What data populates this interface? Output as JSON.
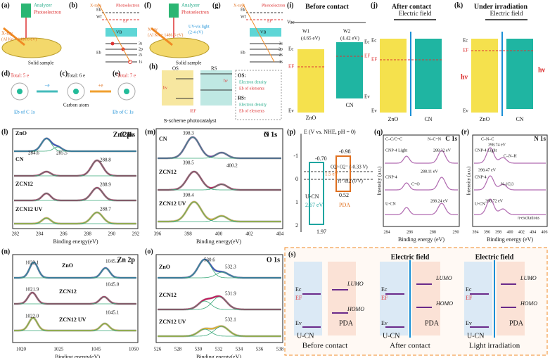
{
  "a": {
    "label": "(a)",
    "texts": [
      "Analyzer",
      "Photoelectron",
      "X-ray",
      "(Al Kα = 1486.6 eV)",
      "Solid sample"
    ]
  },
  "b": {
    "label": "(b)",
    "texts": [
      "X-rays",
      "Photoelectron",
      "Ek",
      "Wf",
      "EF",
      "VB",
      "Eb",
      "3s",
      "2p",
      "2s",
      "1s"
    ]
  },
  "c": {
    "label": "(c)",
    "texts": [
      "Total: 6 e",
      "Carbon atom",
      "−e",
      "+e"
    ]
  },
  "d": {
    "label": "(d)",
    "texts": [
      "Total: 5 e",
      "Eb of C 1s"
    ]
  },
  "e": {
    "label": "(e)",
    "texts": [
      "Total: 7 e",
      "Eb of C 1s"
    ]
  },
  "f": {
    "label": "(f)",
    "texts": [
      "Analyzer",
      "Photoelectron",
      "X-ray",
      "(Al Kα = 1486.6 eV)",
      "UV-vis light",
      "(2-4 eV)",
      "Solid sample"
    ]
  },
  "g": {
    "label": "(g)",
    "texts": [
      "X-rays",
      "Photoelectron",
      "Ek",
      "Wf",
      "EF",
      "VB",
      "Eb",
      "3s",
      "2p",
      "2s",
      "1s"
    ]
  },
  "h": {
    "label": "(h)",
    "texts": [
      "OS",
      "RS",
      "hν",
      "hν",
      "IEF",
      "S-scheme photocatalyst",
      "OS:",
      "Electron density",
      "Eb of elements",
      "RS:",
      "Electron density",
      "Eb of elements"
    ]
  },
  "i": {
    "label": "(i)",
    "texts": [
      "Before contact",
      "Vac",
      "W1",
      "(4.65 eV)",
      "W2",
      "(4.42 eV)",
      "Ec",
      "EF",
      "Ec",
      "EF",
      "Ev",
      "Ev",
      "ZnO",
      "CN"
    ]
  },
  "j": {
    "label": "(j)",
    "texts": [
      "After contact",
      "Electric field",
      "Ec",
      "EF",
      "Ev",
      "ZnO",
      "CN"
    ]
  },
  "k": {
    "label": "(k)",
    "texts": [
      "Under irradiation",
      "Electric field",
      "Ec",
      "EF",
      "Ev",
      "hν",
      "hν",
      "ZnO",
      "CN"
    ]
  },
  "l": {
    "label": "(l)",
    "title": "C 1s",
    "samples": [
      "ZnO",
      "CN",
      "ZCN12",
      "ZCN12 UV"
    ],
    "peaks": [
      "284.6",
      "285.5",
      "288.8",
      "288.9",
      "288.7"
    ],
    "xlabel": "Binding energy(eV)",
    "xticks": [
      "282",
      "284",
      "286",
      "288",
      "290",
      "292"
    ]
  },
  "m": {
    "label": "(m)",
    "title": "N 1s",
    "samples": [
      "CN",
      "ZCN12",
      "ZCN12 UV"
    ],
    "peaks": [
      "398.3",
      "398.5",
      "400.2",
      "398.4"
    ],
    "xlabel": "Binding energy(eV)",
    "xticks": [
      "396",
      "398",
      "400",
      "402",
      "404"
    ]
  },
  "n": {
    "label": "(n)",
    "title": "Zn 2p",
    "samples": [
      "ZnO",
      "ZCN12",
      "ZCN12 UV"
    ],
    "peaks": [
      "1022.1",
      "1045.2",
      "1021.9",
      "1045.0",
      "1022.0",
      "1045.1"
    ],
    "xlabel": "Binding energy(eV)",
    "xticks": [
      "1020",
      "1025",
      "1045",
      "1050"
    ]
  },
  "o": {
    "label": "(o)",
    "title": "O 1s",
    "samples": [
      "ZnO",
      "ZCN12",
      "ZCN12 UV"
    ],
    "peaks": [
      "530.6",
      "532.3",
      "531.9",
      "532.1"
    ],
    "xlabel": "Binding energy(eV)",
    "xticks": [
      "526",
      "528",
      "530",
      "532",
      "534",
      "536",
      "538"
    ]
  },
  "p": {
    "label": "(p)",
    "ylabel": "E (V vs. NHE, pH = 0)",
    "yticks": [
      "-1",
      "0",
      "1",
      "2"
    ],
    "texts": [
      "-0.70",
      "-0.98",
      "O2/·O2⁻ (-0.33 V)",
      "H⁺/H2 (0 V)",
      "1.5 eV",
      "U-CN",
      "2.67 eV",
      "PDA",
      "0.52",
      "1.97"
    ]
  },
  "q": {
    "label": "(q)",
    "title": "C 1s",
    "texts": [
      "C–C/C=C",
      "N–C=N",
      "CNP-4 Light",
      "288.32 eV",
      "CNP-4",
      "288.11 eV",
      "C=O",
      "U-CN",
      "288.24 eV"
    ],
    "ylabel": "Intensity (a.u.)",
    "xlabel": "Binding energy (eV)",
    "xticks": [
      "284",
      "286",
      "288",
      "290"
    ]
  },
  "r": {
    "label": "(r)",
    "title": "N 1s",
    "texts": [
      "C–N–C",
      "398.74 eV",
      "CNP-4 Light",
      "C–N–H",
      "CNP-4",
      "398.47 eV",
      "N–(C)3",
      "U-CN",
      "398.72 eV",
      "π-excitations"
    ],
    "ylabel": "Intensity (a.u.)",
    "xlabel": "Binding energy (eV)",
    "xticks": [
      "394",
      "396",
      "398",
      "400",
      "402",
      "404",
      "406"
    ]
  },
  "s": {
    "label": "(s)",
    "stages": [
      "Before contact",
      "After contact",
      "Light irradiation"
    ],
    "field": [
      "Electric field",
      "Electric field"
    ],
    "texts": [
      "Ec",
      "EF",
      "Ev",
      "LUMO",
      "HOMO",
      "PDA",
      "U-CN"
    ]
  }
}
